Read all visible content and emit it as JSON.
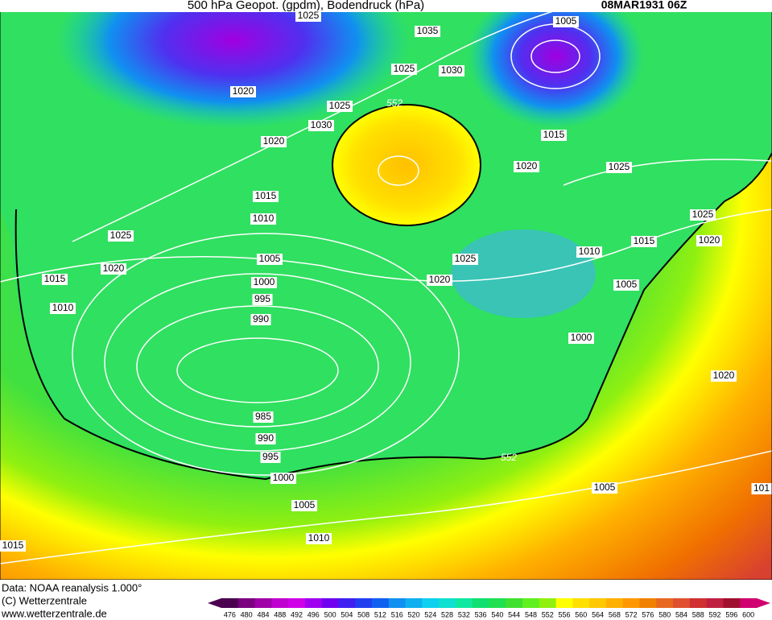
{
  "header": {
    "title": "500 hPa Geopot. (gpdm), Bodendruck (hPa)",
    "date": "08MAR1931 06Z"
  },
  "isobar_labels": [
    1025,
    1035,
    1005,
    1020,
    1025,
    1030,
    1025,
    1030,
    1020,
    1015,
    1020,
    1025,
    1015,
    1010,
    1025,
    1020,
    1025,
    1015,
    1020,
    1025,
    1010,
    1005,
    1015,
    1020,
    1000,
    1005,
    995,
    1010,
    990,
    1000,
    1020,
    985,
    990,
    995,
    1000,
    1005,
    1005,
    1010,
    1015,
    101
  ],
  "geopot_labels": [
    552,
    552
  ],
  "footer": {
    "lines": [
      "Data: NOAA reanalysis 1.000°",
      "(C) Wetterzentrale",
      "www.wetterzentrale.de"
    ]
  },
  "colorbar": {
    "ticks": [
      476,
      480,
      484,
      488,
      492,
      496,
      500,
      504,
      508,
      512,
      516,
      520,
      524,
      528,
      532,
      536,
      540,
      544,
      548,
      552,
      556,
      560,
      564,
      568,
      572,
      576,
      580,
      584,
      588,
      592,
      596,
      600
    ],
    "colors": [
      "#4b0050",
      "#7a0080",
      "#a000a8",
      "#c000d0",
      "#d000e8",
      "#a000f0",
      "#7000f0",
      "#4020f0",
      "#2040f0",
      "#1060f0",
      "#1090f0",
      "#10b0f0",
      "#10d0f0",
      "#10e0d0",
      "#10e8a0",
      "#10e070",
      "#20e050",
      "#40e030",
      "#60f020",
      "#90f010",
      "#ffff00",
      "#ffe000",
      "#ffc800",
      "#ffb000",
      "#ff9800",
      "#f08000",
      "#e86820",
      "#e05030",
      "#d03030",
      "#c02040",
      "#a01030",
      "#d00070"
    ]
  }
}
